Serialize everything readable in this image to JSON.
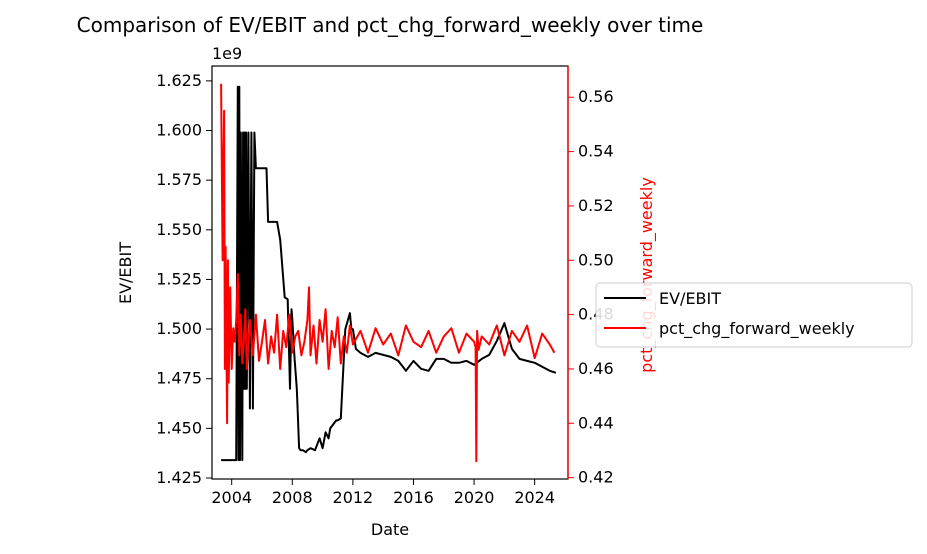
{
  "chart_data": {
    "type": "line",
    "title": "Comparison of EV/EBIT and pct_chg_forward_weekly over time",
    "xlabel": "Date",
    "ylabel_left": "EV/EBIT",
    "ylabel_right": "pct_chg_forward_weekly",
    "left_offset_text": "1e9",
    "x_ticks": [
      "2004",
      "2008",
      "2012",
      "2016",
      "2020",
      "2024"
    ],
    "xlim": [
      2002.7,
      2026.2
    ],
    "left_ylim": [
      1.4245,
      1.6325
    ],
    "left_ticks": [
      "1.425",
      "1.450",
      "1.475",
      "1.500",
      "1.525",
      "1.550",
      "1.575",
      "1.600",
      "1.625"
    ],
    "right_ylim": [
      0.4195,
      0.5715
    ],
    "right_ticks": [
      "0.42",
      "0.44",
      "0.46",
      "0.48",
      "0.50",
      "0.52",
      "0.54",
      "0.56"
    ],
    "legend_position": "center-left-outside",
    "series": [
      {
        "name": "EV/EBIT",
        "axis": "left",
        "color": "#000000",
        "x": [
          2003.3,
          2004.3,
          2004.4,
          2004.45,
          2004.5,
          2004.55,
          2004.6,
          2004.7,
          2004.75,
          2004.8,
          2004.85,
          2004.9,
          2004.95,
          2005.0,
          2005.1,
          2005.2,
          2005.3,
          2005.4,
          2005.5,
          2005.6,
          2005.7,
          2005.8,
          2005.9,
          2006.0,
          2006.1,
          2006.2,
          2006.3,
          2006.4,
          2006.6,
          2006.9,
          2007.0,
          2007.2,
          2007.5,
          2007.7,
          2007.85,
          2007.95,
          2008.0,
          2008.15,
          2008.3,
          2008.35,
          2008.45,
          2008.55,
          2008.7,
          2008.9,
          2009.0,
          2009.2,
          2009.5,
          2009.8,
          2010.0,
          2010.2,
          2010.4,
          2010.5,
          2010.7,
          2010.9,
          2011.0,
          2011.2,
          2011.5,
          2011.8,
          2011.9,
          2012.0,
          2012.2,
          2012.5,
          2013.0,
          2013.5,
          2014.0,
          2014.5,
          2015.0,
          2015.3,
          2015.5,
          2016.0,
          2016.5,
          2017.0,
          2017.5,
          2018.0,
          2018.5,
          2019.0,
          2019.5,
          2020.0,
          2020.5,
          2021.0,
          2021.5,
          2022.0,
          2022.5,
          2023.0,
          2023.5,
          2024.0,
          2024.5,
          2025.0,
          2025.4
        ],
        "values": [
          1.434,
          1.434,
          1.622,
          1.434,
          1.622,
          1.434,
          1.599,
          1.434,
          1.599,
          1.47,
          1.599,
          1.47,
          1.599,
          1.47,
          1.599,
          1.46,
          1.599,
          1.46,
          1.599,
          1.581,
          1.581,
          1.581,
          1.581,
          1.581,
          1.581,
          1.581,
          1.581,
          1.554,
          1.554,
          1.554,
          1.554,
          1.545,
          1.516,
          1.515,
          1.47,
          1.51,
          1.505,
          1.485,
          1.47,
          1.46,
          1.44,
          1.439,
          1.439,
          1.438,
          1.439,
          1.44,
          1.439,
          1.445,
          1.44,
          1.448,
          1.445,
          1.45,
          1.452,
          1.454,
          1.454,
          1.455,
          1.5,
          1.508,
          1.5,
          1.5,
          1.49,
          1.488,
          1.486,
          1.488,
          1.487,
          1.486,
          1.484,
          1.481,
          1.479,
          1.484,
          1.48,
          1.479,
          1.485,
          1.485,
          1.483,
          1.483,
          1.484,
          1.482,
          1.485,
          1.487,
          1.494,
          1.503,
          1.49,
          1.485,
          1.484,
          1.483,
          1.481,
          1.479,
          1.478
        ]
      },
      {
        "name": "pct_chg_forward_weekly",
        "axis": "right",
        "color": "#ff0000",
        "x": [
          2003.3,
          2003.4,
          2003.5,
          2003.55,
          2003.6,
          2003.7,
          2003.75,
          2003.8,
          2003.9,
          2004.0,
          2004.1,
          2004.2,
          2004.3,
          2004.4,
          2004.5,
          2004.6,
          2004.7,
          2004.8,
          2004.9,
          2005.0,
          2005.2,
          2005.4,
          2005.6,
          2005.8,
          2006.0,
          2006.2,
          2006.4,
          2006.6,
          2006.8,
          2007.0,
          2007.2,
          2007.4,
          2007.6,
          2007.8,
          2008.0,
          2008.2,
          2008.4,
          2008.6,
          2008.8,
          2009.0,
          2009.1,
          2009.2,
          2009.4,
          2009.6,
          2009.8,
          2010.0,
          2010.2,
          2010.4,
          2010.6,
          2010.8,
          2011.0,
          2011.2,
          2011.4,
          2011.6,
          2011.8,
          2012.0,
          2012.5,
          2013.0,
          2013.5,
          2014.0,
          2014.5,
          2015.0,
          2015.5,
          2016.0,
          2016.5,
          2017.0,
          2017.5,
          2018.0,
          2018.5,
          2019.0,
          2019.5,
          2020.0,
          2020.1,
          2020.15,
          2020.2,
          2020.3,
          2020.5,
          2021.0,
          2021.5,
          2022.0,
          2022.5,
          2023.0,
          2023.5,
          2024.0,
          2024.5,
          2025.0,
          2025.3
        ],
        "values": [
          0.565,
          0.5,
          0.555,
          0.46,
          0.505,
          0.44,
          0.5,
          0.455,
          0.49,
          0.46,
          0.475,
          0.47,
          0.478,
          0.495,
          0.465,
          0.48,
          0.462,
          0.47,
          0.482,
          0.46,
          0.478,
          0.465,
          0.48,
          0.463,
          0.47,
          0.478,
          0.462,
          0.472,
          0.466,
          0.48,
          0.46,
          0.474,
          0.468,
          0.48,
          0.466,
          0.472,
          0.474,
          0.465,
          0.47,
          0.478,
          0.49,
          0.465,
          0.476,
          0.462,
          0.478,
          0.47,
          0.482,
          0.46,
          0.474,
          0.468,
          0.479,
          0.462,
          0.472,
          0.466,
          0.476,
          0.469,
          0.474,
          0.466,
          0.475,
          0.469,
          0.473,
          0.465,
          0.476,
          0.47,
          0.468,
          0.474,
          0.466,
          0.472,
          0.475,
          0.466,
          0.473,
          0.47,
          0.468,
          0.426,
          0.474,
          0.467,
          0.472,
          0.469,
          0.476,
          0.465,
          0.474,
          0.47,
          0.476,
          0.464,
          0.473,
          0.469,
          0.466
        ]
      }
    ]
  }
}
